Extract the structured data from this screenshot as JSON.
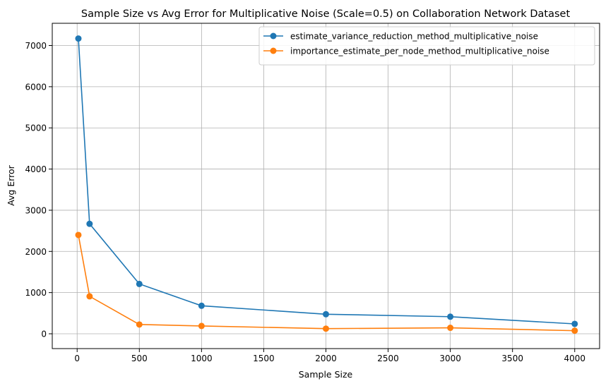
{
  "chart_data": {
    "type": "line",
    "title": "Sample Size vs Avg Error for Multiplicative Noise (Scale=0.5) on Collaboration Network Dataset",
    "xlabel": "Sample Size",
    "ylabel": "Avg Error",
    "xlim": [
      -200,
      4200
    ],
    "ylim": [
      -360,
      7540
    ],
    "xticks": [
      0,
      500,
      1000,
      1500,
      2000,
      2500,
      3000,
      3500,
      4000
    ],
    "yticks": [
      0,
      1000,
      2000,
      3000,
      4000,
      5000,
      6000,
      7000
    ],
    "grid": true,
    "legend_position": "top-right",
    "x": [
      10,
      100,
      500,
      1000,
      2000,
      3000,
      4000
    ],
    "series": [
      {
        "name": "estimate_variance_reduction_method_multiplicative_noise",
        "color": "#1f77b4",
        "values": [
          7170,
          2670,
          1210,
          680,
          475,
          415,
          240
        ]
      },
      {
        "name": "importance_estimate_per_node_method_multiplicative_noise",
        "color": "#ff7f0e",
        "values": [
          2400,
          910,
          225,
          190,
          125,
          145,
          75
        ]
      }
    ]
  }
}
